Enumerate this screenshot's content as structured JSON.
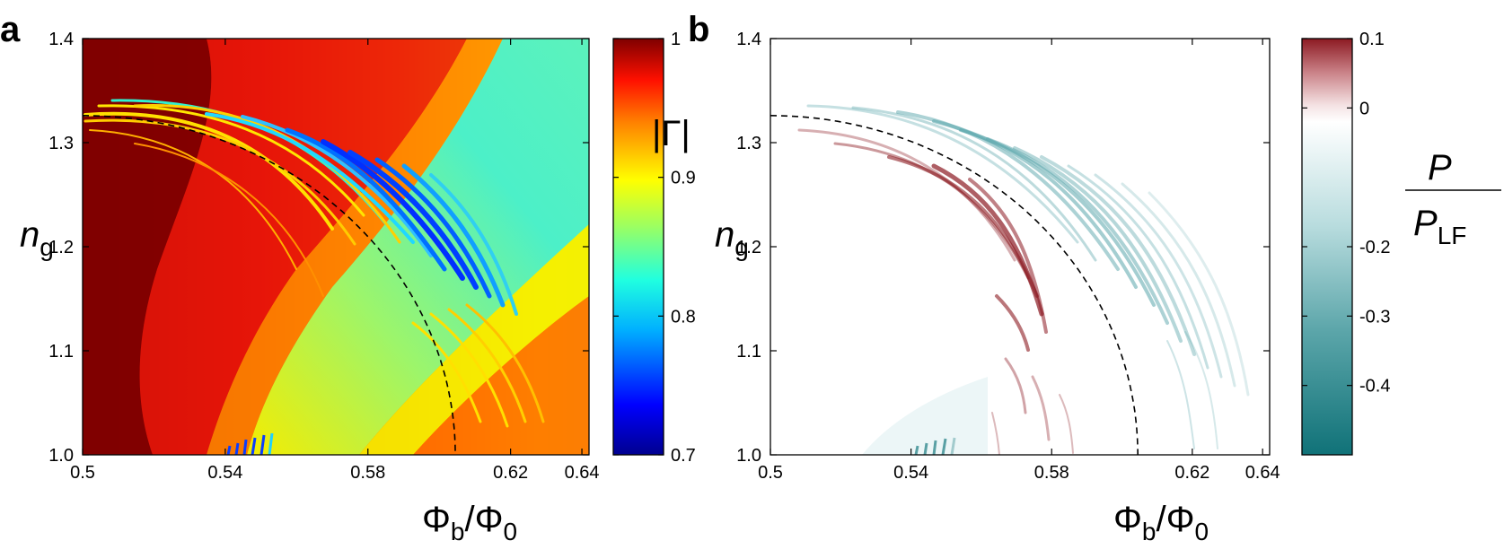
{
  "chart_data": [
    {
      "type": "heatmap",
      "panel_label": "a",
      "xlabel": {
        "main": "Φ",
        "sub1": "b",
        "slash": "/Φ",
        "sub2": "0"
      },
      "ylabel": {
        "main": "n",
        "sub": "g"
      },
      "x_ticks": [
        "0.5",
        "0.54",
        "0.58",
        "0.62",
        "0.64"
      ],
      "x_tick_values": [
        0.5,
        0.54,
        0.58,
        0.62,
        0.64
      ],
      "y_ticks": [
        "1.0",
        "1.1",
        "1.2",
        "1.3",
        "1.4"
      ],
      "y_tick_values": [
        1.0,
        1.1,
        1.2,
        1.3,
        1.4
      ],
      "xlim": [
        0.5,
        0.642
      ],
      "ylim": [
        1.0,
        1.4
      ],
      "colorbar": {
        "label": "|Γ|",
        "range": [
          0.7,
          1.0
        ],
        "ticks": [
          "0.7",
          "0.8",
          "0.9",
          "1"
        ],
        "tick_values": [
          0.7,
          0.8,
          0.9,
          1.0
        ],
        "colormap": "jet"
      },
      "dashed_curve": {
        "x_at_top": 0.5,
        "y_at_top": 1.326,
        "x_at_bottom": 0.6045,
        "y_at_bottom": 1.0
      }
    },
    {
      "type": "heatmap",
      "panel_label": "b",
      "xlabel": {
        "main": "Φ",
        "sub1": "b",
        "slash": "/Φ",
        "sub2": "0"
      },
      "ylabel": {
        "main": "n",
        "sub": "g"
      },
      "x_ticks": [
        "0.5",
        "0.54",
        "0.58",
        "0.62",
        "0.64"
      ],
      "x_tick_values": [
        0.5,
        0.54,
        0.58,
        0.62,
        0.64
      ],
      "y_ticks": [
        "1.0",
        "1.1",
        "1.2",
        "1.3",
        "1.4"
      ],
      "y_tick_values": [
        1.0,
        1.1,
        1.2,
        1.3,
        1.4
      ],
      "xlim": [
        0.5,
        0.642
      ],
      "ylim": [
        1.0,
        1.4
      ],
      "colorbar": {
        "label": {
          "numerator": "P",
          "denominator": "P",
          "denominator_sub": "LF"
        },
        "range": [
          -0.5,
          0.1
        ],
        "ticks": [
          "-0.4",
          "-0.3",
          "-0.2",
          "0",
          "0.1"
        ],
        "tick_values": [
          -0.4,
          -0.3,
          -0.2,
          0.0,
          0.1
        ],
        "colormap": "diverging teal-white-red"
      },
      "dashed_curve": {
        "x_at_top": 0.5,
        "y_at_top": 1.326,
        "x_at_bottom": 0.6045,
        "y_at_bottom": 1.0
      }
    }
  ],
  "colors": {
    "jet_dark_red": "#7f0000",
    "jet_red": "#ee1a0a",
    "jet_orange": "#ff8a00",
    "jet_yellow": "#f5f000",
    "jet_cyan": "#4cf5c8",
    "jet_blue": "#0a3cff",
    "diverging_red": "#7a1418",
    "diverging_teal": "#1c7c82",
    "white": "#ffffff"
  }
}
